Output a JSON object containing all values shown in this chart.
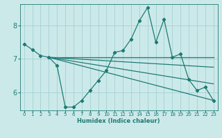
{
  "xlabel": "Humidex (Indice chaleur)",
  "bg_color": "#cce9ea",
  "grid_color": "#a8d4d6",
  "line_color": "#1e7a72",
  "xlim": [
    -0.5,
    23.5
  ],
  "ylim": [
    5.45,
    8.65
  ],
  "yticks": [
    6,
    7,
    8
  ],
  "xticks": [
    0,
    1,
    2,
    3,
    4,
    5,
    6,
    7,
    8,
    9,
    10,
    11,
    12,
    13,
    14,
    15,
    16,
    17,
    18,
    19,
    20,
    21,
    22,
    23
  ],
  "main_line": [
    [
      0,
      7.45
    ],
    [
      1,
      7.28
    ],
    [
      2,
      7.1
    ],
    [
      3,
      7.05
    ],
    [
      4,
      6.8
    ],
    [
      5,
      5.55
    ],
    [
      6,
      5.55
    ],
    [
      7,
      5.75
    ],
    [
      8,
      6.05
    ],
    [
      9,
      6.35
    ],
    [
      10,
      6.65
    ],
    [
      11,
      7.2
    ],
    [
      12,
      7.25
    ],
    [
      13,
      7.6
    ],
    [
      14,
      8.15
    ],
    [
      15,
      8.55
    ],
    [
      16,
      7.5
    ],
    [
      17,
      8.2
    ],
    [
      18,
      7.05
    ],
    [
      19,
      7.15
    ],
    [
      20,
      6.38
    ],
    [
      21,
      6.05
    ],
    [
      22,
      6.15
    ],
    [
      23,
      5.75
    ]
  ],
  "fan_lines": [
    {
      "x0": 3,
      "y0": 7.05,
      "x1": 23,
      "y1": 5.75
    },
    {
      "x0": 3,
      "y0": 7.05,
      "x1": 23,
      "y1": 6.25
    },
    {
      "x0": 3,
      "y0": 7.05,
      "x1": 23,
      "y1": 6.75
    },
    {
      "x0": 3,
      "y0": 7.05,
      "x1": 23,
      "y1": 7.05
    }
  ]
}
